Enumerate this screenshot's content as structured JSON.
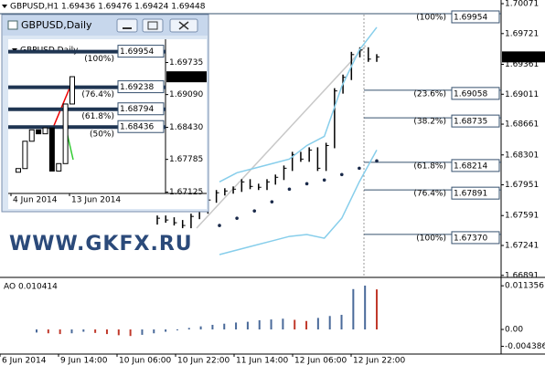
{
  "chart_data": [
    {
      "type": "price-bars",
      "title": "GBPUSD,H1 1.69436 1.69476 1.69424 1.69448",
      "watermark": "WWW.GKFX.RU",
      "ylim": [
        1.66878,
        1.70114
      ],
      "yticks": [
        1.70071,
        1.69721,
        1.69361,
        1.69011,
        1.68661,
        1.68301,
        1.67951,
        1.67591,
        1.67241,
        1.66891
      ],
      "current_price": 1.69448,
      "xtick_labels": [
        "6 Jun 2014",
        "9 Jun 14:00",
        "10 Jun 06:00",
        "10 Jun 22:00",
        "11 Jun 14:00",
        "12 Jun 06:00",
        "12 Jun 22:00"
      ],
      "fib_levels": [
        {
          "level": "(100%)",
          "value": 1.69954,
          "value_label": "1.69954"
        },
        {
          "level": "(23.6%)",
          "value": 1.69058,
          "value_label": "1.69058"
        },
        {
          "level": "(38.2%)",
          "value": 1.68735,
          "value_label": "1.68735"
        },
        {
          "level": "(61.8%)",
          "value": 1.68214,
          "value_label": "1.68214"
        },
        {
          "level": "(76.4%)",
          "value": 1.67891,
          "value_label": "1.67891"
        },
        {
          "level": "(100%)",
          "value": 1.6737,
          "value_label": "1.67370"
        }
      ],
      "series": [
        {
          "color": "#000000",
          "values": [
            1.6756,
            1.67539,
            1.67507,
            1.67475,
            1.67581,
            1.67645,
            1.67773,
            1.67858,
            1.67879,
            1.679,
            1.67985,
            1.67932,
            1.67922,
            1.67985,
            1.68039,
            1.68145,
            1.68305,
            1.68252,
            1.68358,
            1.68145,
            1.68411,
            1.6905,
            1.69209,
            1.69475,
            1.69529,
            1.69422,
            1.69448
          ]
        },
        {
          "color": "#1a2a4a",
          "values": [
            1.67475,
            1.6756,
            1.67645,
            1.67752,
            1.679,
            1.67964,
            1.68007,
            1.68071,
            1.68145,
            1.68231
          ]
        },
        {
          "color": "#87ceeb",
          "values": [
            1.67985,
            1.68092,
            1.68145,
            1.68198,
            1.68252,
            1.68411,
            1.68518,
            1.69103,
            1.69528,
            1.69794
          ]
        },
        {
          "color": "#87ceeb",
          "values": [
            1.67134,
            1.67188,
            1.67241,
            1.67294,
            1.67347,
            1.67369,
            1.67326,
            1.6756,
            1.67985,
            1.68358
          ]
        }
      ]
    },
    {
      "type": "histogram",
      "title": "AO 0.010414",
      "ylim": [
        -0.0064,
        0.0133
      ],
      "yticks": [
        0.011356,
        {
          "value": 0,
          "label": "0.00"
        },
        -0.004386
      ],
      "up_color": "#4a6a9a",
      "down_color": "#c0392b",
      "values": [
        -0.0008,
        -0.001,
        -0.0012,
        -0.001,
        -0.0006,
        -0.0009,
        -0.0012,
        -0.0015,
        -0.0017,
        -0.0014,
        -0.001,
        -0.0006,
        -0.0002,
        0.0004,
        0.0008,
        0.0012,
        0.0015,
        0.0018,
        0.002,
        0.0024,
        0.0026,
        0.0028,
        0.0025,
        0.0022,
        0.003,
        0.0035,
        0.0038,
        0.0105,
        0.0114,
        0.010414
      ]
    },
    {
      "type": "price-bars",
      "title": "GBPUSD,Daily",
      "ylim": [
        1.67099,
        1.70204
      ],
      "yticks": [
        1.69735,
        {
          "value": 1.6909,
          "label": "1.69090"
        },
        {
          "value": 1.6843,
          "label": "1.68430"
        },
        1.67785,
        1.67125
      ],
      "current_price": 1.69448,
      "xtick_labels": [
        "4 Jun 2014",
        "13 Jun 2014"
      ],
      "fib_levels": [
        {
          "level": "(100%)",
          "value": 1.69954,
          "value_label": "1.69954"
        },
        {
          "level": "(76.4%)",
          "value": 1.69238,
          "value_label": "1.69238"
        },
        {
          "level": "(61.8%)",
          "value": 1.68794,
          "value_label": "1.68794"
        },
        {
          "level": "(50%)",
          "value": 1.68436,
          "value_label": "1.68436"
        }
      ],
      "series": [
        {
          "color": "#000000",
          "values": [
            1.676,
            1.6815,
            1.6838,
            1.683,
            1.6842,
            1.6755,
            1.677,
            1.689,
            1.6945
          ]
        }
      ]
    }
  ]
}
